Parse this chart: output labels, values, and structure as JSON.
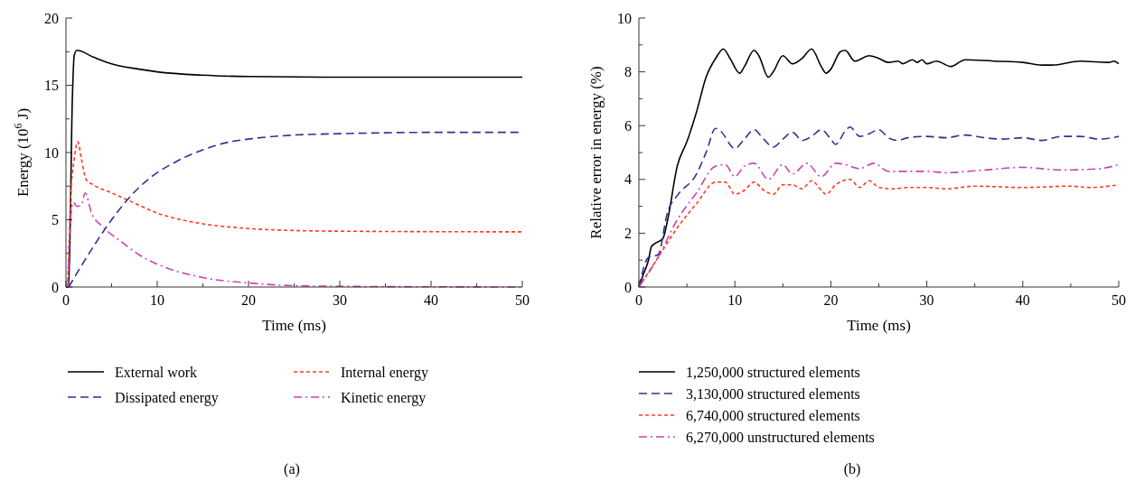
{
  "chart_data": [
    {
      "type": "line",
      "xlabel": "Time (ms)",
      "ylabel": "Energy (10$^{6}$ J)",
      "xlim": [
        0,
        50
      ],
      "ylim": [
        0,
        20
      ],
      "xticks": [
        0,
        {
          "value": 5,
          "label": null
        },
        10,
        {
          "value": 15,
          "label": null
        },
        20,
        {
          "value": 25,
          "label": null
        },
        30,
        {
          "value": 35,
          "label": null
        },
        40,
        {
          "value": 45,
          "label": null
        },
        50
      ],
      "yticks": [
        0,
        {
          "value": 2.5,
          "label": null
        },
        5,
        {
          "value": 7.5,
          "label": null
        },
        10,
        {
          "value": 12.5,
          "label": null
        },
        15,
        {
          "value": 17.5,
          "label": null
        },
        20
      ],
      "legend": "bottom",
      "annotations": [
        "(a)"
      ],
      "series": [
        {
          "name": "External work",
          "color": "#000000",
          "line_style": "solid",
          "x": [
            0,
            0.3,
            0.7,
            0.9,
            1.2,
            3,
            5,
            8,
            10,
            15,
            20,
            30,
            50
          ],
          "values": [
            0,
            0,
            14,
            17.2,
            17.6,
            17.1,
            16.6,
            16.2,
            16,
            15.75,
            15.65,
            15.6,
            15.6
          ]
        },
        {
          "name": "Internal energy",
          "color": "#ff3b1f",
          "line_style": "dotted",
          "x": [
            0.2,
            0.5,
            0.9,
            1.3,
            1.7,
            2.2,
            3,
            5,
            7,
            10,
            15,
            20,
            25,
            30,
            50
          ],
          "values": [
            0,
            6.5,
            9.5,
            10.8,
            9.5,
            8,
            7.6,
            7,
            6.4,
            5.5,
            4.7,
            4.35,
            4.2,
            4.15,
            4.1
          ]
        },
        {
          "name": "Dissipated energy",
          "color": "#2e3192",
          "line_style": "dashed",
          "x": [
            0.3,
            1,
            3,
            5,
            7,
            9,
            12,
            15,
            18,
            20,
            25,
            30,
            40,
            50
          ],
          "values": [
            0,
            0.8,
            3,
            5,
            6.7,
            8,
            9.3,
            10.2,
            10.8,
            11,
            11.3,
            11.4,
            11.5,
            11.5
          ]
        },
        {
          "name": "Kinetic energy",
          "color": "#cc44aa",
          "line_style": "dashdot",
          "x": [
            0.2,
            0.5,
            0.8,
            1.2,
            1.7,
            2.1,
            2.8,
            4,
            6,
            8,
            10,
            15,
            20,
            25,
            30,
            50
          ],
          "values": [
            0,
            5,
            6.3,
            6,
            6.1,
            7,
            5.5,
            4.5,
            3.4,
            2.4,
            1.7,
            0.7,
            0.3,
            0.1,
            0.05,
            0
          ]
        }
      ]
    },
    {
      "type": "line",
      "xlabel": "Time (ms)",
      "ylabel": "Relative error in energy (%)",
      "xlim": [
        0,
        50
      ],
      "ylim": [
        0,
        10
      ],
      "xticks": [
        0,
        {
          "value": 5,
          "label": null
        },
        10,
        {
          "value": 15,
          "label": null
        },
        20,
        {
          "value": 25,
          "label": null
        },
        30,
        {
          "value": 35,
          "label": null
        },
        40,
        {
          "value": 45,
          "label": null
        },
        50
      ],
      "yticks": [
        0,
        {
          "value": 1,
          "label": null
        },
        2,
        {
          "value": 3,
          "label": null
        },
        4,
        {
          "value": 5,
          "label": null
        },
        6,
        {
          "value": 7,
          "label": null
        },
        8,
        {
          "value": 9,
          "label": null
        },
        10
      ],
      "legend": "bottom",
      "annotations": [
        "(b)"
      ],
      "series": [
        {
          "name": "1,250,000 structured elements",
          "color": "#000000",
          "line_style": "solid",
          "x": [
            0,
            0.5,
            1,
            1.3,
            1.6,
            2.5,
            3,
            4,
            5,
            6,
            7,
            8,
            8.8,
            9.5,
            10.5,
            11,
            12,
            12.5,
            13.5,
            14,
            15,
            16,
            17,
            18,
            19,
            19.5,
            20,
            21,
            21.5,
            22.5,
            24,
            25,
            26,
            27,
            27.5,
            28.5,
            29,
            29.5,
            30,
            31,
            32.5,
            34,
            37,
            40,
            42,
            43,
            46,
            49,
            49.5,
            50
          ],
          "values": [
            0,
            0.5,
            1,
            1.5,
            1.6,
            1.8,
            2.5,
            4.5,
            5.4,
            6.5,
            7.8,
            8.5,
            8.85,
            8.5,
            7.95,
            8.2,
            8.8,
            8.6,
            7.8,
            8,
            8.6,
            8.3,
            8.5,
            8.85,
            8.2,
            7.95,
            8.1,
            8.75,
            8.8,
            8.4,
            8.6,
            8.5,
            8.35,
            8.4,
            8.3,
            8.45,
            8.35,
            8.45,
            8.3,
            8.4,
            8.2,
            8.45,
            8.4,
            8.35,
            8.25,
            8.25,
            8.4,
            8.35,
            8.4,
            8.3
          ]
        },
        {
          "name": "3,130,000 structured elements",
          "color": "#2e3192",
          "line_style": "dashed",
          "x": [
            0,
            1,
            2,
            3,
            4,
            6,
            7,
            8,
            8.5,
            10,
            11,
            12,
            13,
            14,
            15,
            16,
            17,
            18,
            19,
            20,
            20.5,
            21.5,
            22,
            23,
            24,
            25,
            26,
            27,
            28,
            30,
            32,
            34,
            36,
            38,
            40,
            42,
            44,
            46,
            48,
            50
          ],
          "values": [
            0,
            1.1,
            1.2,
            2.8,
            3.4,
            4.2,
            5,
            5.9,
            5.8,
            5.15,
            5.5,
            5.85,
            5.5,
            5.2,
            5.5,
            5.75,
            5.45,
            5.6,
            5.85,
            5.5,
            5.3,
            5.8,
            5.95,
            5.6,
            5.7,
            5.85,
            5.55,
            5.45,
            5.55,
            5.6,
            5.55,
            5.65,
            5.55,
            5.5,
            5.55,
            5.45,
            5.6,
            5.6,
            5.5,
            5.6
          ]
        },
        {
          "name": "6,740,000 structured elements",
          "color": "#ff3b1f",
          "line_style": "dotted",
          "x": [
            0,
            2,
            4,
            6,
            8,
            9,
            10,
            11,
            12,
            13,
            14,
            15,
            16,
            17,
            18,
            19,
            19.5,
            20.5,
            22,
            23,
            24,
            25,
            26.5,
            28,
            30,
            32,
            35,
            40,
            45,
            47,
            50
          ],
          "values": [
            0,
            1.1,
            2.2,
            3.1,
            3.9,
            3.9,
            3.45,
            3.6,
            3.9,
            3.6,
            3.45,
            3.8,
            3.8,
            3.65,
            3.95,
            3.6,
            3.45,
            3.8,
            4,
            3.7,
            3.95,
            3.7,
            3.65,
            3.7,
            3.7,
            3.65,
            3.75,
            3.7,
            3.75,
            3.7,
            3.8
          ]
        },
        {
          "name": "6,270,000 unstructured elements",
          "color": "#cc44aa",
          "line_style": "dashdot",
          "x": [
            0,
            2,
            4,
            6,
            8,
            9,
            10,
            11,
            12,
            13.5,
            15,
            16,
            17.5,
            19,
            20.5,
            21.5,
            23,
            24.5,
            26,
            30,
            32,
            36,
            40,
            44,
            48,
            50
          ],
          "values": [
            0,
            1.1,
            2.5,
            3.5,
            4.5,
            4.55,
            4.1,
            4.5,
            4.6,
            4,
            4.55,
            4.2,
            4.6,
            4.1,
            4.6,
            4.55,
            4.4,
            4.6,
            4.3,
            4.3,
            4.25,
            4.35,
            4.45,
            4.35,
            4.4,
            4.55
          ]
        }
      ]
    }
  ]
}
